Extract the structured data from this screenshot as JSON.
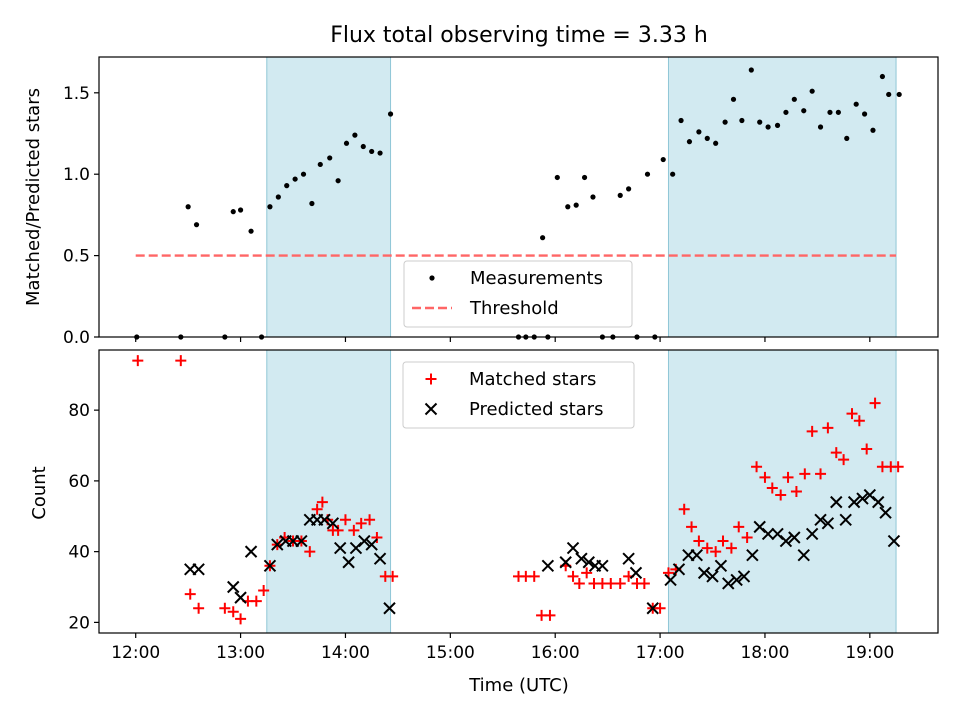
{
  "title": "Flux total observing time = 3.33 h",
  "chart_data": [
    {
      "type": "scatter",
      "ylabel": "Matched/Predicted stars",
      "ylim": [
        0,
        1.72
      ],
      "yticks": [
        "0.0",
        "0.5",
        "1.0",
        "1.5"
      ],
      "xlim": [
        11.65,
        19.65
      ],
      "legend_placement": "lower-center",
      "shaded_intervals": [
        [
          13.25,
          14.43
        ],
        [
          17.08,
          19.25
        ]
      ],
      "shade_color": "#add8e6",
      "series": [
        {
          "name": "Measurements",
          "color": "#000000",
          "marker": "dot",
          "x": [
            12.01,
            12.43,
            12.5,
            12.58,
            12.85,
            12.93,
            13.0,
            13.1,
            13.2,
            13.28,
            13.36,
            13.44,
            13.52,
            13.6,
            13.68,
            13.76,
            13.85,
            13.93,
            14.01,
            14.09,
            14.17,
            14.25,
            14.33,
            14.43,
            15.65,
            15.72,
            15.8,
            15.88,
            15.93,
            16.02,
            16.12,
            16.2,
            16.28,
            16.36,
            16.45,
            16.55,
            16.62,
            16.7,
            16.78,
            16.88,
            16.95,
            17.03,
            17.12,
            17.2,
            17.28,
            17.37,
            17.45,
            17.53,
            17.62,
            17.7,
            17.78,
            17.87,
            17.95,
            18.03,
            18.12,
            18.2,
            18.28,
            18.37,
            18.45,
            18.53,
            18.62,
            18.7,
            18.78,
            18.87,
            18.95,
            19.03,
            19.12,
            19.18,
            19.28
          ],
          "y": [
            0.0,
            0.0,
            0.8,
            0.69,
            0.0,
            0.77,
            0.78,
            0.65,
            0.0,
            0.8,
            0.86,
            0.93,
            0.97,
            1.0,
            0.82,
            1.06,
            1.1,
            0.96,
            1.19,
            1.24,
            1.17,
            1.14,
            1.13,
            1.37,
            0.0,
            0.0,
            0.0,
            0.61,
            0.0,
            0.98,
            0.8,
            0.81,
            0.98,
            0.86,
            0.0,
            0.0,
            0.87,
            0.91,
            0.0,
            1.0,
            0.0,
            1.09,
            1.0,
            1.33,
            1.2,
            1.26,
            1.22,
            1.19,
            1.32,
            1.46,
            1.33,
            1.64,
            1.32,
            1.29,
            1.3,
            1.38,
            1.46,
            1.39,
            1.51,
            1.29,
            1.38,
            1.38,
            1.22,
            1.43,
            1.37,
            1.27,
            1.6,
            1.49,
            1.49
          ]
        },
        {
          "name": "Threshold",
          "color": "#ff6666",
          "style": "dashed",
          "x": [
            12.0,
            19.25
          ],
          "y": [
            0.5,
            0.5
          ]
        }
      ]
    },
    {
      "type": "scatter",
      "xlabel": "Time (UTC)",
      "ylabel": "Count",
      "xlim": [
        11.65,
        19.65
      ],
      "ylim": [
        17,
        97
      ],
      "xticks": [
        {
          "value": 12,
          "label": "12:00"
        },
        {
          "value": 13,
          "label": "13:00"
        },
        {
          "value": 14,
          "label": "14:00"
        },
        {
          "value": 15,
          "label": "15:00"
        },
        {
          "value": 16,
          "label": "16:00"
        },
        {
          "value": 17,
          "label": "17:00"
        },
        {
          "value": 18,
          "label": "18:00"
        },
        {
          "value": 19,
          "label": "19:00"
        }
      ],
      "yticks": [
        20,
        40,
        60,
        80
      ],
      "legend_placement": "upper-center",
      "shaded_intervals": [
        [
          13.25,
          14.43
        ],
        [
          17.08,
          19.25
        ]
      ],
      "shade_color": "#add8e6",
      "series": [
        {
          "name": "Matched stars",
          "color": "#ff0000",
          "marker": "plus",
          "x": [
            12.02,
            12.43,
            12.52,
            12.6,
            12.85,
            12.93,
            13.0,
            13.07,
            13.15,
            13.22,
            13.28,
            13.35,
            13.42,
            13.5,
            13.58,
            13.66,
            13.73,
            13.78,
            13.83,
            13.88,
            13.93,
            14.0,
            14.08,
            14.15,
            14.23,
            14.3,
            14.38,
            14.45,
            15.65,
            15.72,
            15.8,
            15.87,
            15.95,
            16.1,
            16.17,
            16.23,
            16.3,
            16.37,
            16.45,
            16.53,
            16.62,
            16.7,
            16.78,
            16.85,
            16.93,
            17.0,
            17.08,
            17.15,
            17.23,
            17.3,
            17.37,
            17.45,
            17.53,
            17.6,
            17.68,
            17.75,
            17.83,
            17.92,
            18.0,
            18.07,
            18.15,
            18.22,
            18.3,
            18.38,
            18.45,
            18.53,
            18.6,
            18.68,
            18.75,
            18.83,
            18.9,
            18.97,
            19.05,
            19.12,
            19.2,
            19.27
          ],
          "y": [
            94,
            94,
            28,
            24,
            24,
            23,
            21,
            26,
            26,
            29,
            36,
            42,
            44,
            43,
            43,
            40,
            52,
            54,
            49,
            46,
            46,
            49,
            46,
            48,
            49,
            44,
            33,
            33,
            33,
            33,
            33,
            22,
            22,
            36,
            33,
            31,
            34,
            31,
            31,
            31,
            31,
            33,
            31,
            31,
            24,
            24,
            34,
            35,
            52,
            47,
            43,
            41,
            40,
            43,
            41,
            47,
            44,
            64,
            61,
            58,
            56,
            61,
            57,
            62,
            74,
            62,
            75,
            68,
            66,
            79,
            77,
            69,
            82,
            64,
            64,
            64
          ]
        },
        {
          "name": "Predicted stars",
          "color": "#000000",
          "marker": "x",
          "x": [
            12.52,
            12.6,
            12.93,
            13.0,
            13.1,
            13.28,
            13.35,
            13.43,
            13.5,
            13.58,
            13.66,
            13.73,
            13.8,
            13.88,
            13.95,
            14.03,
            14.1,
            14.18,
            14.25,
            14.33,
            14.42,
            15.93,
            16.1,
            16.17,
            16.25,
            16.32,
            16.38,
            16.45,
            16.7,
            16.77,
            16.93,
            17.1,
            17.18,
            17.27,
            17.35,
            17.42,
            17.5,
            17.58,
            17.65,
            17.73,
            17.8,
            17.88,
            17.95,
            18.03,
            18.12,
            18.2,
            18.28,
            18.37,
            18.45,
            18.53,
            18.6,
            18.68,
            18.77,
            18.85,
            18.93,
            19.0,
            19.08,
            19.15,
            19.23
          ],
          "y": [
            35,
            35,
            30,
            27,
            40,
            36,
            42,
            43,
            43,
            43,
            49,
            49,
            49,
            48,
            41,
            37,
            41,
            43,
            42,
            38,
            24,
            36,
            37,
            41,
            38,
            37,
            36,
            36,
            38,
            34,
            24,
            32,
            35,
            39,
            39,
            34,
            33,
            36,
            31,
            32,
            33,
            39,
            47,
            45,
            45,
            43,
            44,
            39,
            45,
            49,
            48,
            54,
            49,
            54,
            55,
            56,
            54,
            51,
            43
          ]
        }
      ]
    }
  ]
}
